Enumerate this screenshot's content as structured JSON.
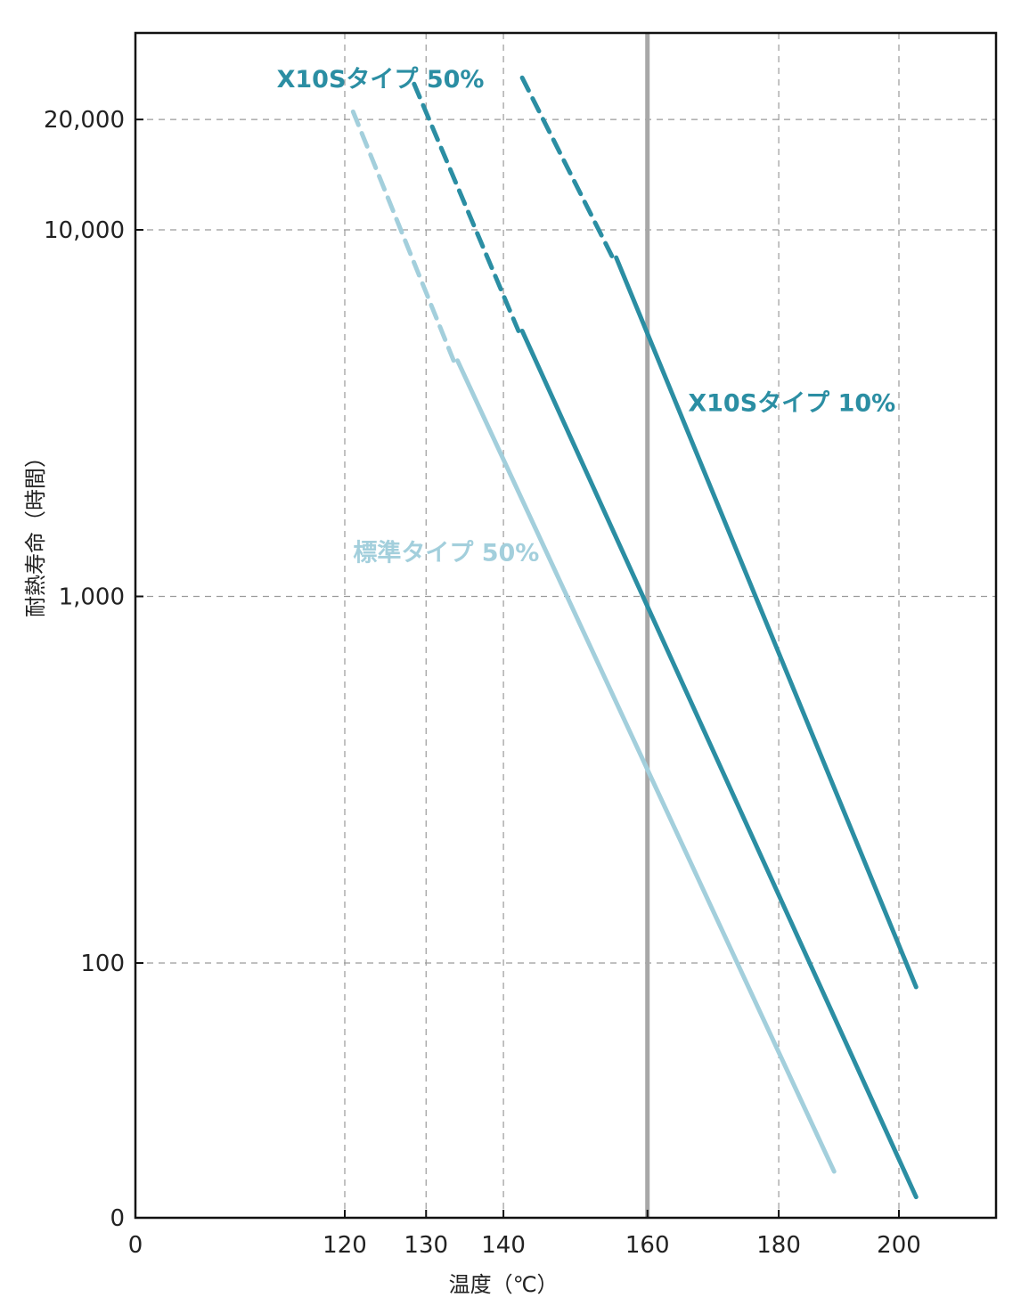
{
  "chart_data": {
    "type": "line",
    "xlabel": "温度（℃）",
    "ylabel": "耐熱寿命（時間）",
    "x_scale": "reciprocal",
    "y_scale": "log",
    "x_ticks": [
      120,
      130,
      140,
      160,
      180,
      200
    ],
    "x_tick_labels": [
      "120",
      "130",
      "140",
      "160",
      "180",
      "200"
    ],
    "x_origin_label": "0",
    "y_ticks": [
      100,
      1000,
      10000,
      20000
    ],
    "y_tick_labels": [
      "100",
      "1,000",
      "10,000",
      "20,000"
    ],
    "y_origin_label": "0",
    "grid": true,
    "marker_line": {
      "x": 160,
      "color": "#a8a8a8"
    },
    "series": [
      {
        "name": "X10Sタイプ 10%",
        "color": "#2b8ea3",
        "dashed": [
          [
            142.5,
            26000
          ],
          [
            155,
            8400
          ]
        ],
        "solid": [
          [
            155.5,
            8400
          ],
          [
            203,
            86
          ]
        ]
      },
      {
        "name": "X10Sタイプ 50%",
        "color": "#2b8ea3",
        "dashed": [
          [
            128.5,
            25000
          ],
          [
            142,
            5300
          ]
        ],
        "solid": [
          [
            142.5,
            5300
          ],
          [
            203,
            23
          ]
        ]
      },
      {
        "name": "標準タイプ 50%",
        "color": "#a3cfdc",
        "dashed": [
          [
            121,
            21000
          ],
          [
            133.5,
            4400
          ]
        ],
        "solid": [
          [
            134,
            4400
          ],
          [
            189,
            27
          ]
        ]
      }
    ]
  }
}
